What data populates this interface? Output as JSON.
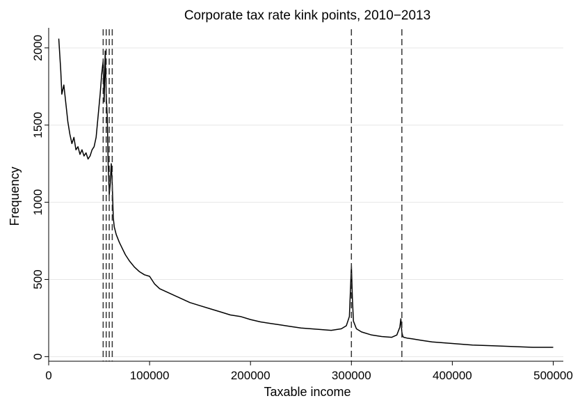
{
  "chart_data": {
    "type": "line",
    "title": "Corporate tax rate kink points, 2010−2013",
    "xlabel": "Taxable income",
    "ylabel": "Frequency",
    "xlim": [
      0,
      510000
    ],
    "ylim": [
      -30,
      2130
    ],
    "x_ticks": [
      0,
      100000,
      200000,
      300000,
      400000,
      500000
    ],
    "x_tick_labels": [
      "0",
      "100000",
      "200000",
      "300000",
      "400000",
      "500000"
    ],
    "y_ticks": [
      0,
      500,
      1000,
      1500,
      2000
    ],
    "y_tick_labels": [
      "0",
      "500",
      "1000",
      "1500",
      "2000"
    ],
    "grid": "horizontal",
    "legend": "none",
    "kink_points": [
      54000,
      57000,
      60000,
      63000,
      300000,
      350000
    ],
    "kink_line_style": "dashed",
    "series": [
      {
        "x": [
          10000,
          12000,
          13000,
          15000,
          17000,
          19000,
          21000,
          23000,
          25000,
          27000,
          29000,
          31000,
          33000,
          35000,
          37000,
          39000,
          41000,
          43000,
          45000,
          47000,
          49000,
          51000,
          52500,
          54000,
          55000,
          56000,
          57000,
          58000,
          59000,
          60000,
          61000,
          62000,
          63000,
          64000,
          65000,
          67000,
          70000,
          73000,
          76000,
          80000,
          85000,
          90000,
          95000,
          100000,
          105000,
          110000,
          120000,
          130000,
          140000,
          150000,
          160000,
          170000,
          180000,
          190000,
          200000,
          210000,
          220000,
          230000,
          240000,
          250000,
          260000,
          270000,
          280000,
          290000,
          295000,
          298000,
          299000,
          300000,
          301000,
          302000,
          305000,
          310000,
          320000,
          330000,
          340000,
          345000,
          348000,
          349000,
          350000,
          351000,
          352000,
          355000,
          360000,
          370000,
          380000,
          390000,
          400000,
          420000,
          440000,
          460000,
          480000,
          500000
        ],
        "values": [
          2060,
          1850,
          1700,
          1760,
          1640,
          1520,
          1440,
          1380,
          1420,
          1340,
          1360,
          1310,
          1340,
          1300,
          1320,
          1280,
          1300,
          1340,
          1360,
          1420,
          1560,
          1700,
          1830,
          1920,
          1650,
          1980,
          1700,
          1560,
          1240,
          1050,
          1120,
          1250,
          1120,
          900,
          840,
          790,
          740,
          700,
          660,
          620,
          580,
          550,
          530,
          520,
          470,
          440,
          410,
          380,
          350,
          330,
          310,
          290,
          270,
          260,
          240,
          225,
          215,
          205,
          195,
          185,
          180,
          175,
          170,
          180,
          200,
          260,
          420,
          590,
          380,
          230,
          180,
          160,
          140,
          130,
          125,
          140,
          190,
          245,
          160,
          130,
          125,
          120,
          115,
          105,
          95,
          90,
          85,
          75,
          70,
          65,
          60,
          60
        ]
      }
    ]
  }
}
